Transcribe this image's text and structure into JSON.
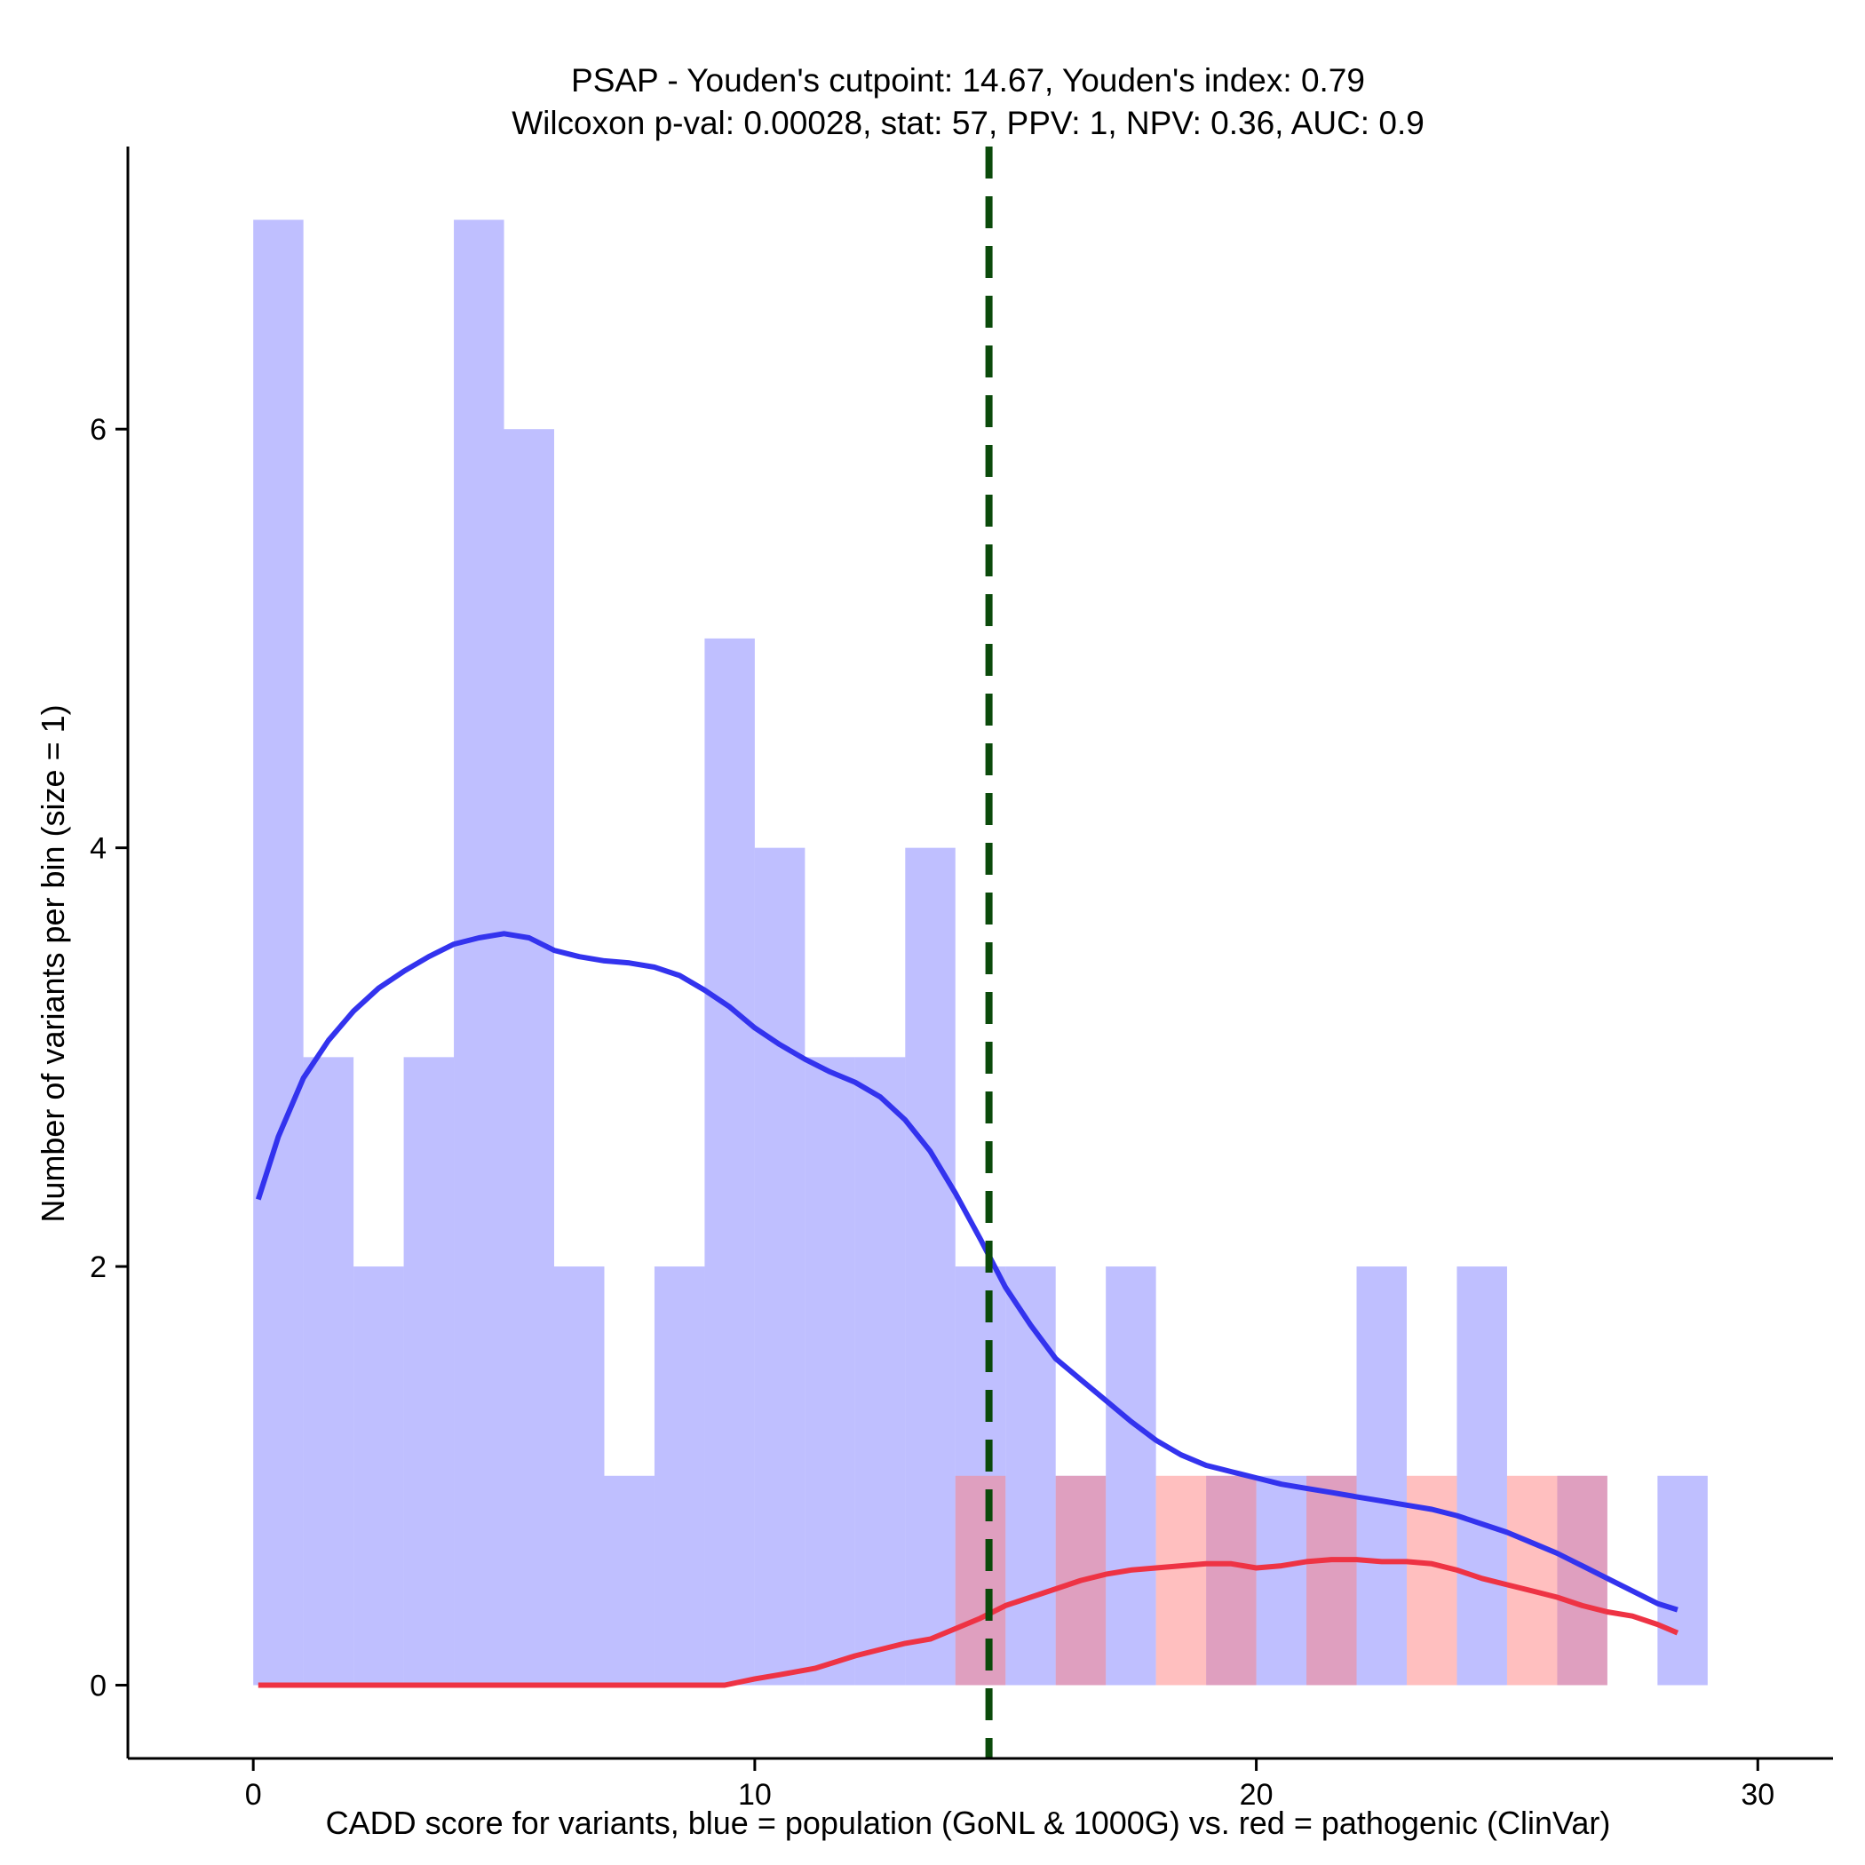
{
  "chart_data": {
    "type": "bar",
    "title_line1": "PSAP - Youden's cutpoint: 14.67, Youden's index: 0.79",
    "title_line2": "Wilcoxon p-val: 0.00028, stat: 57, PPV: 1, NPV: 0.36, AUC: 0.9",
    "xlabel": "CADD score for variants, blue = population (GoNL & 1000G) vs. red = pathogenic (ClinVar)",
    "ylabel": "Number of variants per bin (size = 1)",
    "xlim": [
      -2.5,
      31.5
    ],
    "ylim": [
      -0.35,
      7.35
    ],
    "x_ticks": [
      0,
      10,
      20,
      30
    ],
    "y_ticks": [
      0,
      2,
      4,
      6
    ],
    "bin_width": 1,
    "cutpoint": 14.67,
    "series": [
      {
        "name": "population (GoNL & 1000G)",
        "color": "#8080ff",
        "opacity": 0.5,
        "bin_starts": [
          0,
          1,
          2,
          3,
          4,
          5,
          6,
          7,
          8,
          9,
          10,
          11,
          12,
          13,
          14,
          15,
          16,
          17,
          18,
          19,
          20,
          21,
          22,
          23,
          24,
          25,
          26,
          27,
          28
        ],
        "counts": [
          7,
          3,
          2,
          3,
          7,
          6,
          2,
          1,
          2,
          5,
          4,
          3,
          3,
          4,
          2,
          2,
          1,
          2,
          0,
          1,
          1,
          1,
          2,
          0,
          2,
          0,
          1,
          0,
          1
        ]
      },
      {
        "name": "pathogenic (ClinVar)",
        "color": "#ff8080",
        "opacity": 0.5,
        "bin_starts": [
          14,
          16,
          18,
          19,
          21,
          23,
          25,
          26
        ],
        "counts": [
          1,
          1,
          1,
          1,
          1,
          1,
          1,
          1
        ]
      }
    ],
    "density_lines": [
      {
        "name": "population density",
        "color": "#3333ee",
        "x": [
          0.1,
          0.5,
          1.0,
          1.5,
          2.0,
          2.5,
          3.0,
          3.5,
          4.0,
          4.5,
          5.0,
          5.5,
          6.0,
          6.5,
          7.0,
          7.5,
          8.0,
          8.5,
          9.0,
          9.5,
          10.0,
          10.5,
          11.0,
          11.5,
          12.0,
          12.5,
          13.0,
          13.5,
          14.0,
          14.5,
          15.0,
          15.5,
          16.0,
          16.5,
          17.0,
          17.5,
          18.0,
          18.5,
          19.0,
          19.5,
          20.0,
          20.5,
          21.0,
          21.5,
          22.0,
          22.5,
          23.0,
          23.5,
          24.0,
          24.5,
          25.0,
          25.5,
          26.0,
          26.5,
          27.0,
          27.5,
          28.0,
          28.4
        ],
        "y": [
          2.32,
          2.62,
          2.9,
          3.08,
          3.22,
          3.33,
          3.41,
          3.48,
          3.54,
          3.57,
          3.59,
          3.57,
          3.51,
          3.48,
          3.46,
          3.45,
          3.43,
          3.39,
          3.32,
          3.24,
          3.14,
          3.06,
          2.99,
          2.93,
          2.88,
          2.81,
          2.7,
          2.55,
          2.35,
          2.13,
          1.9,
          1.72,
          1.56,
          1.46,
          1.36,
          1.26,
          1.17,
          1.1,
          1.05,
          1.02,
          0.99,
          0.96,
          0.94,
          0.92,
          0.9,
          0.88,
          0.86,
          0.84,
          0.81,
          0.77,
          0.73,
          0.68,
          0.63,
          0.57,
          0.51,
          0.45,
          0.39,
          0.36
        ]
      },
      {
        "name": "pathogenic density",
        "color": "#ee3344",
        "x": [
          0.1,
          1.0,
          2.0,
          3.0,
          4.0,
          5.0,
          6.0,
          7.0,
          8.0,
          9.0,
          9.4,
          10.0,
          10.5,
          11.2,
          12.0,
          12.5,
          13.0,
          13.5,
          14.0,
          14.5,
          15.0,
          15.5,
          16.0,
          16.5,
          17.0,
          17.5,
          18.0,
          18.5,
          19.0,
          19.5,
          20.0,
          20.5,
          21.0,
          21.5,
          22.0,
          22.5,
          23.0,
          23.5,
          24.0,
          24.5,
          25.0,
          25.5,
          26.0,
          26.5,
          27.0,
          27.5,
          28.0,
          28.4
        ],
        "y": [
          0.0,
          0.0,
          0.0,
          0.0,
          0.0,
          0.0,
          0.0,
          0.0,
          0.0,
          0.0,
          0.0,
          0.03,
          0.05,
          0.08,
          0.14,
          0.17,
          0.2,
          0.22,
          0.27,
          0.32,
          0.38,
          0.42,
          0.46,
          0.5,
          0.53,
          0.55,
          0.56,
          0.57,
          0.58,
          0.58,
          0.56,
          0.57,
          0.59,
          0.6,
          0.6,
          0.59,
          0.59,
          0.58,
          0.55,
          0.51,
          0.48,
          0.45,
          0.42,
          0.38,
          0.35,
          0.33,
          0.29,
          0.25
        ]
      }
    ],
    "cutpoint_color": "#0b4a0b"
  }
}
